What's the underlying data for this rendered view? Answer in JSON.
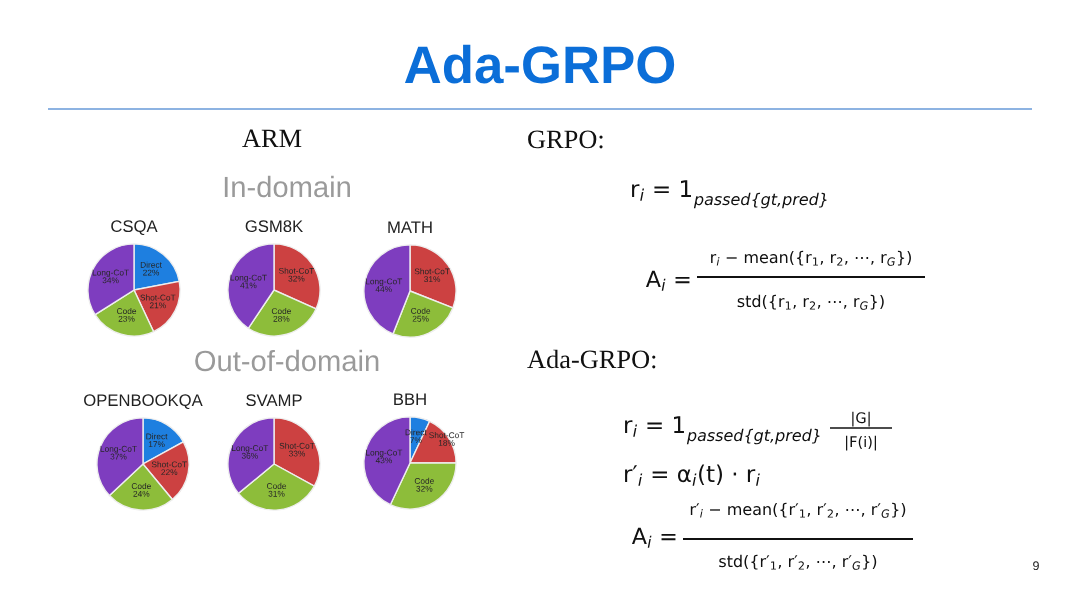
{
  "chart_data": [
    {
      "type": "other",
      "title": "Ada-GRPO",
      "annotations": [
        "9"
      ]
    },
    {
      "type": "other",
      "title": "ARM",
      "annotations": [
        "In-domain",
        "Out-of-domain"
      ]
    },
    {
      "type": "pie",
      "title": "CSQA",
      "categories": [
        "Direct",
        "Shot-CoT",
        "Code",
        "Long-CoT"
      ],
      "values": [
        22,
        21,
        23,
        34
      ],
      "value_labels": [
        "22%",
        "21%",
        "23%",
        "34%"
      ],
      "colors": [
        "#1E7FE0",
        "#CC4141",
        "#8DBD3A",
        "#7E3DBF"
      ]
    },
    {
      "type": "pie",
      "title": "GSM8K",
      "categories": [
        "Shot-CoT",
        "Code",
        "Long-CoT"
      ],
      "values": [
        32,
        28,
        41
      ],
      "value_labels": [
        "32%",
        "28%",
        "41%"
      ],
      "colors": [
        "#CC4141",
        "#8DBD3A",
        "#7E3DBF"
      ]
    },
    {
      "type": "pie",
      "title": "MATH",
      "categories": [
        "Shot-CoT",
        "Code",
        "Long-CoT"
      ],
      "values": [
        31,
        25,
        44
      ],
      "value_labels": [
        "31%",
        "25%",
        "44%"
      ],
      "colors": [
        "#CC4141",
        "#8DBD3A",
        "#7E3DBF"
      ]
    },
    {
      "type": "pie",
      "title": "OPENBOOKQA",
      "categories": [
        "Direct",
        "Shot-CoT",
        "Code",
        "Long-CoT"
      ],
      "values": [
        17,
        22,
        24,
        37
      ],
      "value_labels": [
        "17%",
        "22%",
        "24%",
        "37%"
      ],
      "colors": [
        "#1E7FE0",
        "#CC4141",
        "#8DBD3A",
        "#7E3DBF"
      ]
    },
    {
      "type": "pie",
      "title": "SVAMP",
      "categories": [
        "Shot-CoT",
        "Code",
        "Long-CoT"
      ],
      "values": [
        33,
        31,
        36
      ],
      "value_labels": [
        "33%",
        "31%",
        "36%"
      ],
      "colors": [
        "#CC4141",
        "#8DBD3A",
        "#7E3DBF"
      ]
    },
    {
      "type": "pie",
      "title": "BBH",
      "categories": [
        "Direct",
        "Shot-CoT",
        "Code",
        "Long-CoT"
      ],
      "values": [
        7,
        18,
        32,
        43
      ],
      "value_labels": [
        "7%",
        "18%",
        "32%",
        "43%"
      ],
      "colors": [
        "#1E7FE0",
        "#CC4141",
        "#8DBD3A",
        "#7E3DBF"
      ]
    },
    {
      "type": "other",
      "title": "GRPO:",
      "annotations": [
        "r$_{i}$ = 1",
        "passed{gt,pred}",
        "A$_{i}$ =",
        "r$_{i}$ − mean({r$_{1}$, r$_{2}$, ⋯, r$_{G}$})",
        "std({r$_{1}$, r$_{2}$, ⋯, r$_{G}$})"
      ]
    },
    {
      "type": "other",
      "title": "Ada-GRPO:",
      "annotations": [
        "r$_{i}$ = 1",
        "passed{gt,pred}",
        "|G|",
        "|F(i)|",
        "r′$_{i}$ = α$_{i}$(t) · r$_{i}$",
        "A$_{i}$ =",
        "r′$_{i}$ − mean({r′$_{1}$, r′$_{2}$, ⋯, r′$_{G}$})",
        "std({r′$_{1}$, r′$_{2}$, ⋯, r′$_{G}$})"
      ]
    }
  ]
}
